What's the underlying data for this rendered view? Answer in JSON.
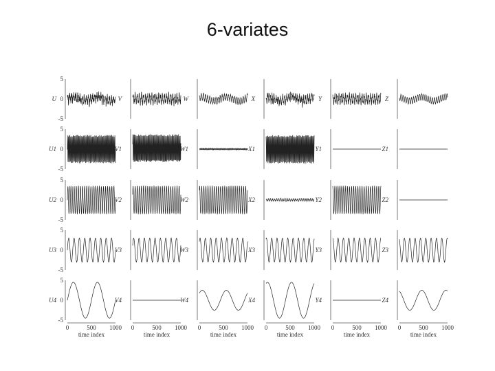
{
  "title": "6-variates",
  "chart_data": {
    "type": "line",
    "x": {
      "label": "time index",
      "range": [
        0,
        1000
      ],
      "ticks": [
        "0",
        "500",
        "1000"
      ]
    },
    "y": {
      "range": [
        -5,
        5
      ],
      "ticks": [
        "5",
        "0",
        "-5"
      ]
    },
    "columns": [
      "U",
      "V",
      "W",
      "X",
      "Y",
      "Z"
    ],
    "rows": [
      {
        "labels": [
          "U",
          "V",
          "W",
          "X",
          "Y",
          "Z"
        ],
        "series": [
          {
            "amp": 1.6,
            "cycles": [
              2,
              23,
              60
            ],
            "weights": [
              0.6,
              1.0,
              0.6
            ],
            "noise": 0.7
          },
          {
            "amp": 1.6,
            "cycles": [
              23,
              60
            ],
            "weights": [
              1.0,
              0.6
            ],
            "noise": 0.3
          },
          {
            "amp": 1.3,
            "cycles": [
              2,
              23
            ],
            "weights": [
              0.6,
              1.0
            ],
            "noise": 0.3
          },
          {
            "amp": 1.6,
            "cycles": [
              2,
              23,
              60
            ],
            "weights": [
              0.6,
              1.0,
              0.6
            ],
            "noise": 0.7
          },
          {
            "amp": 1.6,
            "cycles": [
              23,
              60
            ],
            "weights": [
              1.0,
              0.6
            ],
            "noise": 0.1
          },
          {
            "amp": 1.3,
            "cycles": [
              2,
              23
            ],
            "weights": [
              0.6,
              1.0
            ],
            "noise": 0.1
          }
        ]
      },
      {
        "labels": [
          "U1",
          "V1",
          "W1",
          "X1",
          "Y1",
          "Z1"
        ],
        "series": [
          {
            "amp": 3.5,
            "cycles": [
              60
            ],
            "weights": [
              1.0
            ],
            "noise": 0.25
          },
          {
            "amp": 3.5,
            "cycles": [
              60
            ],
            "weights": [
              1.0
            ],
            "noise": 0.25
          },
          {
            "amp": 0.15,
            "cycles": [
              60
            ],
            "weights": [
              1.0
            ],
            "noise": 0.05
          },
          {
            "amp": 3.5,
            "cycles": [
              60
            ],
            "weights": [
              1.0
            ],
            "noise": 0.25
          },
          {
            "amp": 0.0,
            "cycles": [
              60
            ],
            "weights": [
              1.0
            ],
            "noise": 0.0
          },
          {
            "amp": 0.0,
            "cycles": [
              60
            ],
            "weights": [
              1.0
            ],
            "noise": 0.0
          }
        ]
      },
      {
        "labels": [
          "U2",
          "V2",
          "W2",
          "X2",
          "Y2",
          "Z2"
        ],
        "series": [
          {
            "amp": 3.5,
            "cycles": [
              23
            ],
            "weights": [
              1.0
            ],
            "noise": 0.1
          },
          {
            "amp": 3.5,
            "cycles": [
              23
            ],
            "weights": [
              1.0
            ],
            "noise": 0.1
          },
          {
            "amp": 3.5,
            "cycles": [
              23
            ],
            "weights": [
              1.0
            ],
            "noise": 0.1
          },
          {
            "amp": 0.3,
            "cycles": [
              23
            ],
            "weights": [
              1.0
            ],
            "noise": 0.15
          },
          {
            "amp": 3.5,
            "cycles": [
              23
            ],
            "weights": [
              1.0
            ],
            "noise": 0.1
          },
          {
            "amp": 0.0,
            "cycles": [
              23
            ],
            "weights": [
              1.0
            ],
            "noise": 0.0
          }
        ]
      },
      {
        "labels": [
          "U3",
          "V3",
          "W3",
          "X3",
          "Y3",
          "Z3"
        ],
        "series": [
          {
            "amp": 3.0,
            "cycles": [
              9
            ],
            "weights": [
              1.0
            ],
            "noise": 0.05
          },
          {
            "amp": 3.0,
            "cycles": [
              9
            ],
            "weights": [
              1.0
            ],
            "noise": 0.05
          },
          {
            "amp": 3.0,
            "cycles": [
              9
            ],
            "weights": [
              1.0
            ],
            "noise": 0.05
          },
          {
            "amp": 3.0,
            "cycles": [
              9
            ],
            "weights": [
              1.0
            ],
            "noise": 0.05
          },
          {
            "amp": 3.0,
            "cycles": [
              9
            ],
            "weights": [
              1.0
            ],
            "noise": 0.05
          },
          {
            "amp": 3.0,
            "cycles": [
              9
            ],
            "weights": [
              1.0
            ],
            "noise": 0.05
          }
        ]
      },
      {
        "labels": [
          "U4",
          "V4",
          "W4",
          "X4",
          "Y4",
          "Z4"
        ],
        "series": [
          {
            "amp": 4.5,
            "cycles": [
              2
            ],
            "weights": [
              1.0
            ],
            "noise": 0.0
          },
          {
            "amp": 0.0,
            "cycles": [
              2
            ],
            "weights": [
              1.0
            ],
            "noise": 0.0
          },
          {
            "amp": 2.5,
            "cycles": [
              2
            ],
            "weights": [
              1.0
            ],
            "noise": 0.0
          },
          {
            "amp": 4.5,
            "cycles": [
              2
            ],
            "weights": [
              1.0
            ],
            "noise": 0.0
          },
          {
            "amp": 0.0,
            "cycles": [
              2
            ],
            "weights": [
              1.0
            ],
            "noise": 0.0
          },
          {
            "amp": 2.5,
            "cycles": [
              2
            ],
            "weights": [
              1.0
            ],
            "noise": 0.0
          }
        ]
      }
    ],
    "grid": false,
    "line_color": "#222222"
  }
}
